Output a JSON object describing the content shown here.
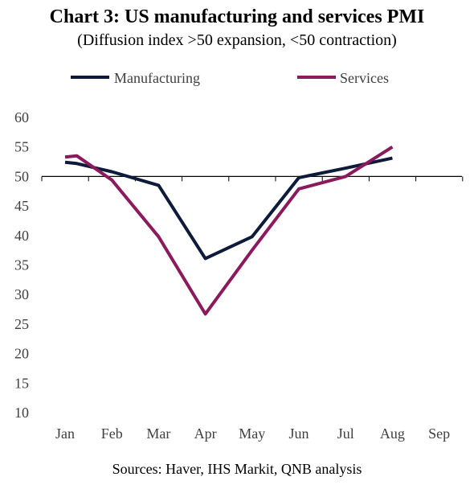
{
  "chart_data": {
    "type": "line",
    "title": "Chart 3: US manufacturing and services PMI",
    "subtitle": "(Diffusion index >50 expansion, <50 contraction)",
    "source": "Sources: Haver, IHS Markit, QNB analysis",
    "x_ticks": [
      "Jan",
      "Feb",
      "Mar",
      "Apr",
      "May",
      "Jun",
      "Jul",
      "Aug",
      "Sep"
    ],
    "ylim": [
      10,
      60
    ],
    "y_ticks": [
      "10",
      "15",
      "20",
      "25",
      "30",
      "35",
      "40",
      "45",
      "50",
      "55",
      "60"
    ],
    "reference_line_y": 50,
    "grid": false,
    "legend_position": "top",
    "series": [
      {
        "name": "Manufacturing",
        "color": "#0d1a3a",
        "points": [
          [
            0.0,
            52.4
          ],
          [
            0.25,
            52.2
          ],
          [
            1.0,
            50.8
          ],
          [
            2.0,
            48.5
          ],
          [
            3.0,
            36.1
          ],
          [
            4.0,
            39.8
          ],
          [
            5.0,
            49.8
          ],
          [
            6.0,
            51.4
          ],
          [
            7.0,
            53.1
          ]
        ]
      },
      {
        "name": "Services",
        "color": "#8b1a5c",
        "points": [
          [
            0.0,
            53.3
          ],
          [
            0.25,
            53.5
          ],
          [
            1.0,
            49.4
          ],
          [
            2.0,
            39.8
          ],
          [
            3.0,
            26.7
          ],
          [
            4.0,
            37.5
          ],
          [
            5.0,
            47.9
          ],
          [
            6.0,
            50.0
          ],
          [
            7.0,
            55.0
          ]
        ]
      }
    ]
  }
}
